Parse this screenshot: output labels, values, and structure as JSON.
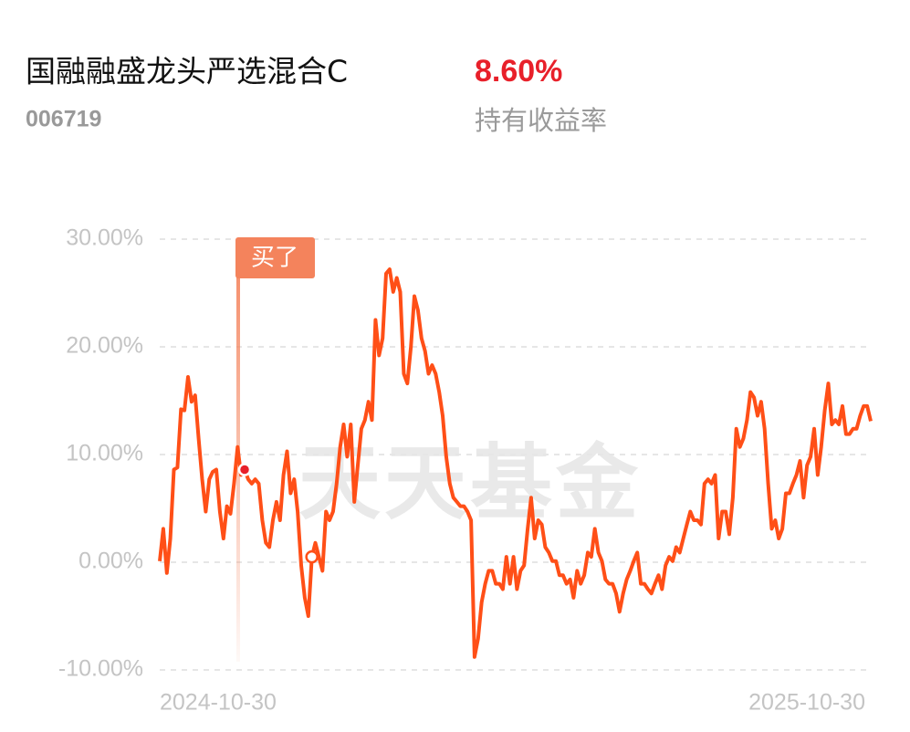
{
  "chart_data": {
    "type": "line",
    "title": "国融融盛龙头严选混合C",
    "subtitle": "006719",
    "stat_text": "8.60%",
    "stat_caption": "持有收益率",
    "annotation": "买了",
    "watermark": "天天基金",
    "ylim": [
      -10,
      30
    ],
    "yticks": [
      {
        "value": -10,
        "label": "-10.00%"
      },
      {
        "value": 0,
        "label": "0.00%"
      },
      {
        "value": 10,
        "label": "10.00%"
      },
      {
        "value": 20,
        "label": "20.00%"
      },
      {
        "value": 30,
        "label": "30.00%"
      }
    ],
    "grid": true,
    "categories": [
      "2024-10-30",
      null,
      null,
      null,
      null,
      null,
      null,
      null,
      null,
      null,
      null,
      null,
      null,
      null,
      null,
      null,
      null,
      null,
      null,
      null,
      null,
      null,
      null,
      null,
      null,
      null,
      null,
      null,
      null,
      null,
      null,
      null,
      null,
      null,
      null,
      null,
      null,
      null,
      null,
      null,
      null,
      null,
      null,
      null,
      null,
      null,
      null,
      null,
      null,
      null,
      null,
      null,
      null,
      null,
      null,
      null,
      null,
      null,
      null,
      null,
      null,
      null,
      null,
      null,
      null,
      null,
      null,
      null,
      null,
      null,
      null,
      null,
      null,
      null,
      null,
      null,
      null,
      null,
      null,
      null,
      null,
      null,
      null,
      null,
      null,
      null,
      null,
      null,
      null,
      null,
      null,
      null,
      null,
      null,
      null,
      null,
      null,
      null,
      null,
      null,
      null,
      null,
      null,
      null,
      null,
      null,
      null,
      null,
      null,
      null,
      null,
      null,
      null,
      null,
      null,
      null,
      null,
      null,
      null,
      null,
      null,
      null,
      null,
      null,
      null,
      null,
      null,
      null,
      null,
      null,
      null,
      null,
      null,
      null,
      null,
      null,
      null,
      null,
      null,
      null,
      null,
      null,
      null,
      null,
      null,
      null,
      null,
      null,
      null,
      null,
      null,
      null,
      null,
      null,
      null,
      null,
      null,
      null,
      null,
      null,
      null,
      null,
      null,
      null,
      null,
      null,
      null,
      null,
      null,
      null,
      null,
      null,
      null,
      null,
      null,
      null,
      null,
      null,
      null,
      null,
      null,
      null,
      null,
      null,
      null,
      null,
      null,
      null,
      null,
      null,
      null,
      null,
      null,
      null,
      null,
      null,
      null,
      null,
      null,
      null,
      null,
      "2025-10-30"
    ],
    "series": [
      {
        "color": "#ff4f17",
        "values": [
          0.1,
          3.1,
          -1.0,
          2.2,
          8.6,
          8.8,
          14.2,
          14.1,
          17.2,
          14.9,
          15.5,
          11.5,
          7.7,
          4.7,
          7.7,
          8.4,
          8.6,
          4.7,
          2.2,
          5.2,
          4.5,
          7.3,
          10.7,
          8.1,
          8.6,
          7.7,
          7.3,
          7.7,
          7.3,
          3.9,
          1.8,
          1.4,
          3.9,
          5.6,
          3.9,
          8.1,
          10.3,
          6.4,
          7.7,
          4.7,
          -0.3,
          -3.3,
          -5.0,
          0.5,
          1.8,
          0.5,
          -0.8,
          4.7,
          3.9,
          4.7,
          7.3,
          10.7,
          12.8,
          9.8,
          12.8,
          5.6,
          9.0,
          12.4,
          13.2,
          14.9,
          13.2,
          22.5,
          19.2,
          20.8,
          26.8,
          27.2,
          25.1,
          26.4,
          25.1,
          17.5,
          16.6,
          20.0,
          24.7,
          23.4,
          20.8,
          19.6,
          17.5,
          18.3,
          17.5,
          15.8,
          13.6,
          9.8,
          7.3,
          6.0,
          5.6,
          5.2,
          5.2,
          4.7,
          3.9,
          -8.8,
          -7.1,
          -3.7,
          -2.0,
          -0.8,
          -0.8,
          -2.0,
          -2.0,
          -2.5,
          0.5,
          -2.0,
          0.5,
          -2.5,
          -0.8,
          -0.3,
          3.1,
          6.0,
          2.2,
          3.9,
          3.5,
          1.4,
          0.9,
          0.1,
          0.1,
          -1.2,
          -1.2,
          -2.0,
          -1.6,
          -3.3,
          -0.8,
          -2.0,
          -1.2,
          0.9,
          0.5,
          3.1,
          0.9,
          0.1,
          -1.6,
          -2.0,
          -2.0,
          -2.9,
          -4.6,
          -2.9,
          -1.6,
          -0.8,
          0.1,
          0.9,
          -2.0,
          -2.0,
          -2.5,
          -2.9,
          -2.0,
          -1.2,
          -2.5,
          -0.3,
          0.5,
          0.1,
          1.4,
          0.9,
          2.2,
          3.5,
          4.7,
          3.9,
          3.9,
          3.5,
          7.3,
          7.7,
          7.3,
          8.1,
          2.2,
          4.7,
          4.7,
          2.6,
          6.0,
          12.4,
          10.7,
          11.5,
          13.2,
          15.8,
          15.3,
          13.6,
          14.9,
          12.4,
          7.3,
          3.1,
          3.9,
          2.2,
          3.1,
          6.4,
          6.4,
          7.3,
          8.1,
          9.4,
          6.0,
          9.0,
          9.8,
          12.4,
          8.1,
          10.7,
          14.1,
          16.6,
          12.8,
          13.2,
          12.8,
          14.5,
          11.9,
          11.9,
          12.4,
          12.4,
          13.6,
          14.5,
          14.5,
          13.1
        ]
      }
    ]
  }
}
